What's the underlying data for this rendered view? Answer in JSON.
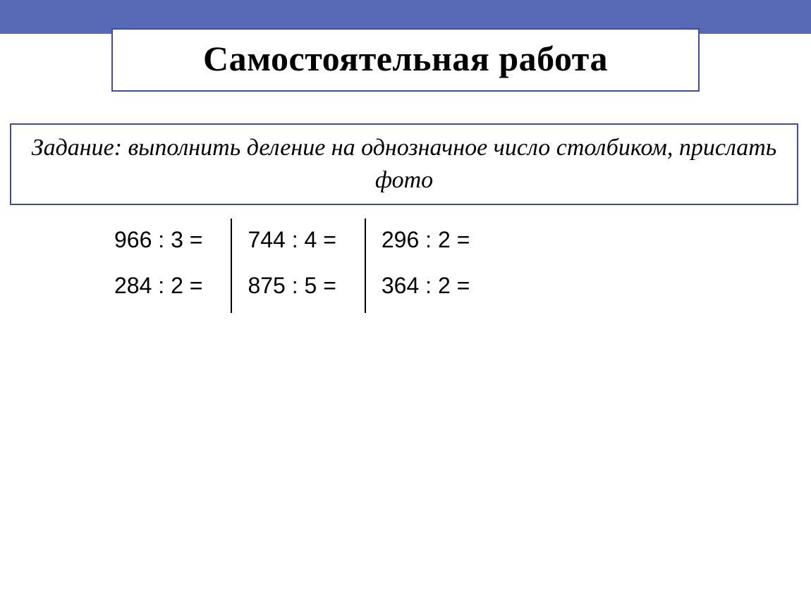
{
  "header": {
    "title": "Самостоятельная работа"
  },
  "task": {
    "description": "Задание: выполнить деление на однозначное число столбиком, прислать фото"
  },
  "problems": {
    "columns": [
      {
        "items": [
          "966 : 3 =",
          "284 : 2 ="
        ]
      },
      {
        "items": [
          "744 : 4 =",
          "875 : 5 ="
        ]
      },
      {
        "items": [
          "296 : 2 =",
          "364 : 2 ="
        ]
      }
    ]
  },
  "styling": {
    "top_bar_color": "#5869b6",
    "border_color": "#3b4cb0",
    "background_color": "#ffffff",
    "title_fontsize": 50,
    "task_fontsize": 34,
    "problem_fontsize": 32,
    "title_fontweight": "bold",
    "task_fontstyle": "italic",
    "divider_color": "#000000"
  }
}
